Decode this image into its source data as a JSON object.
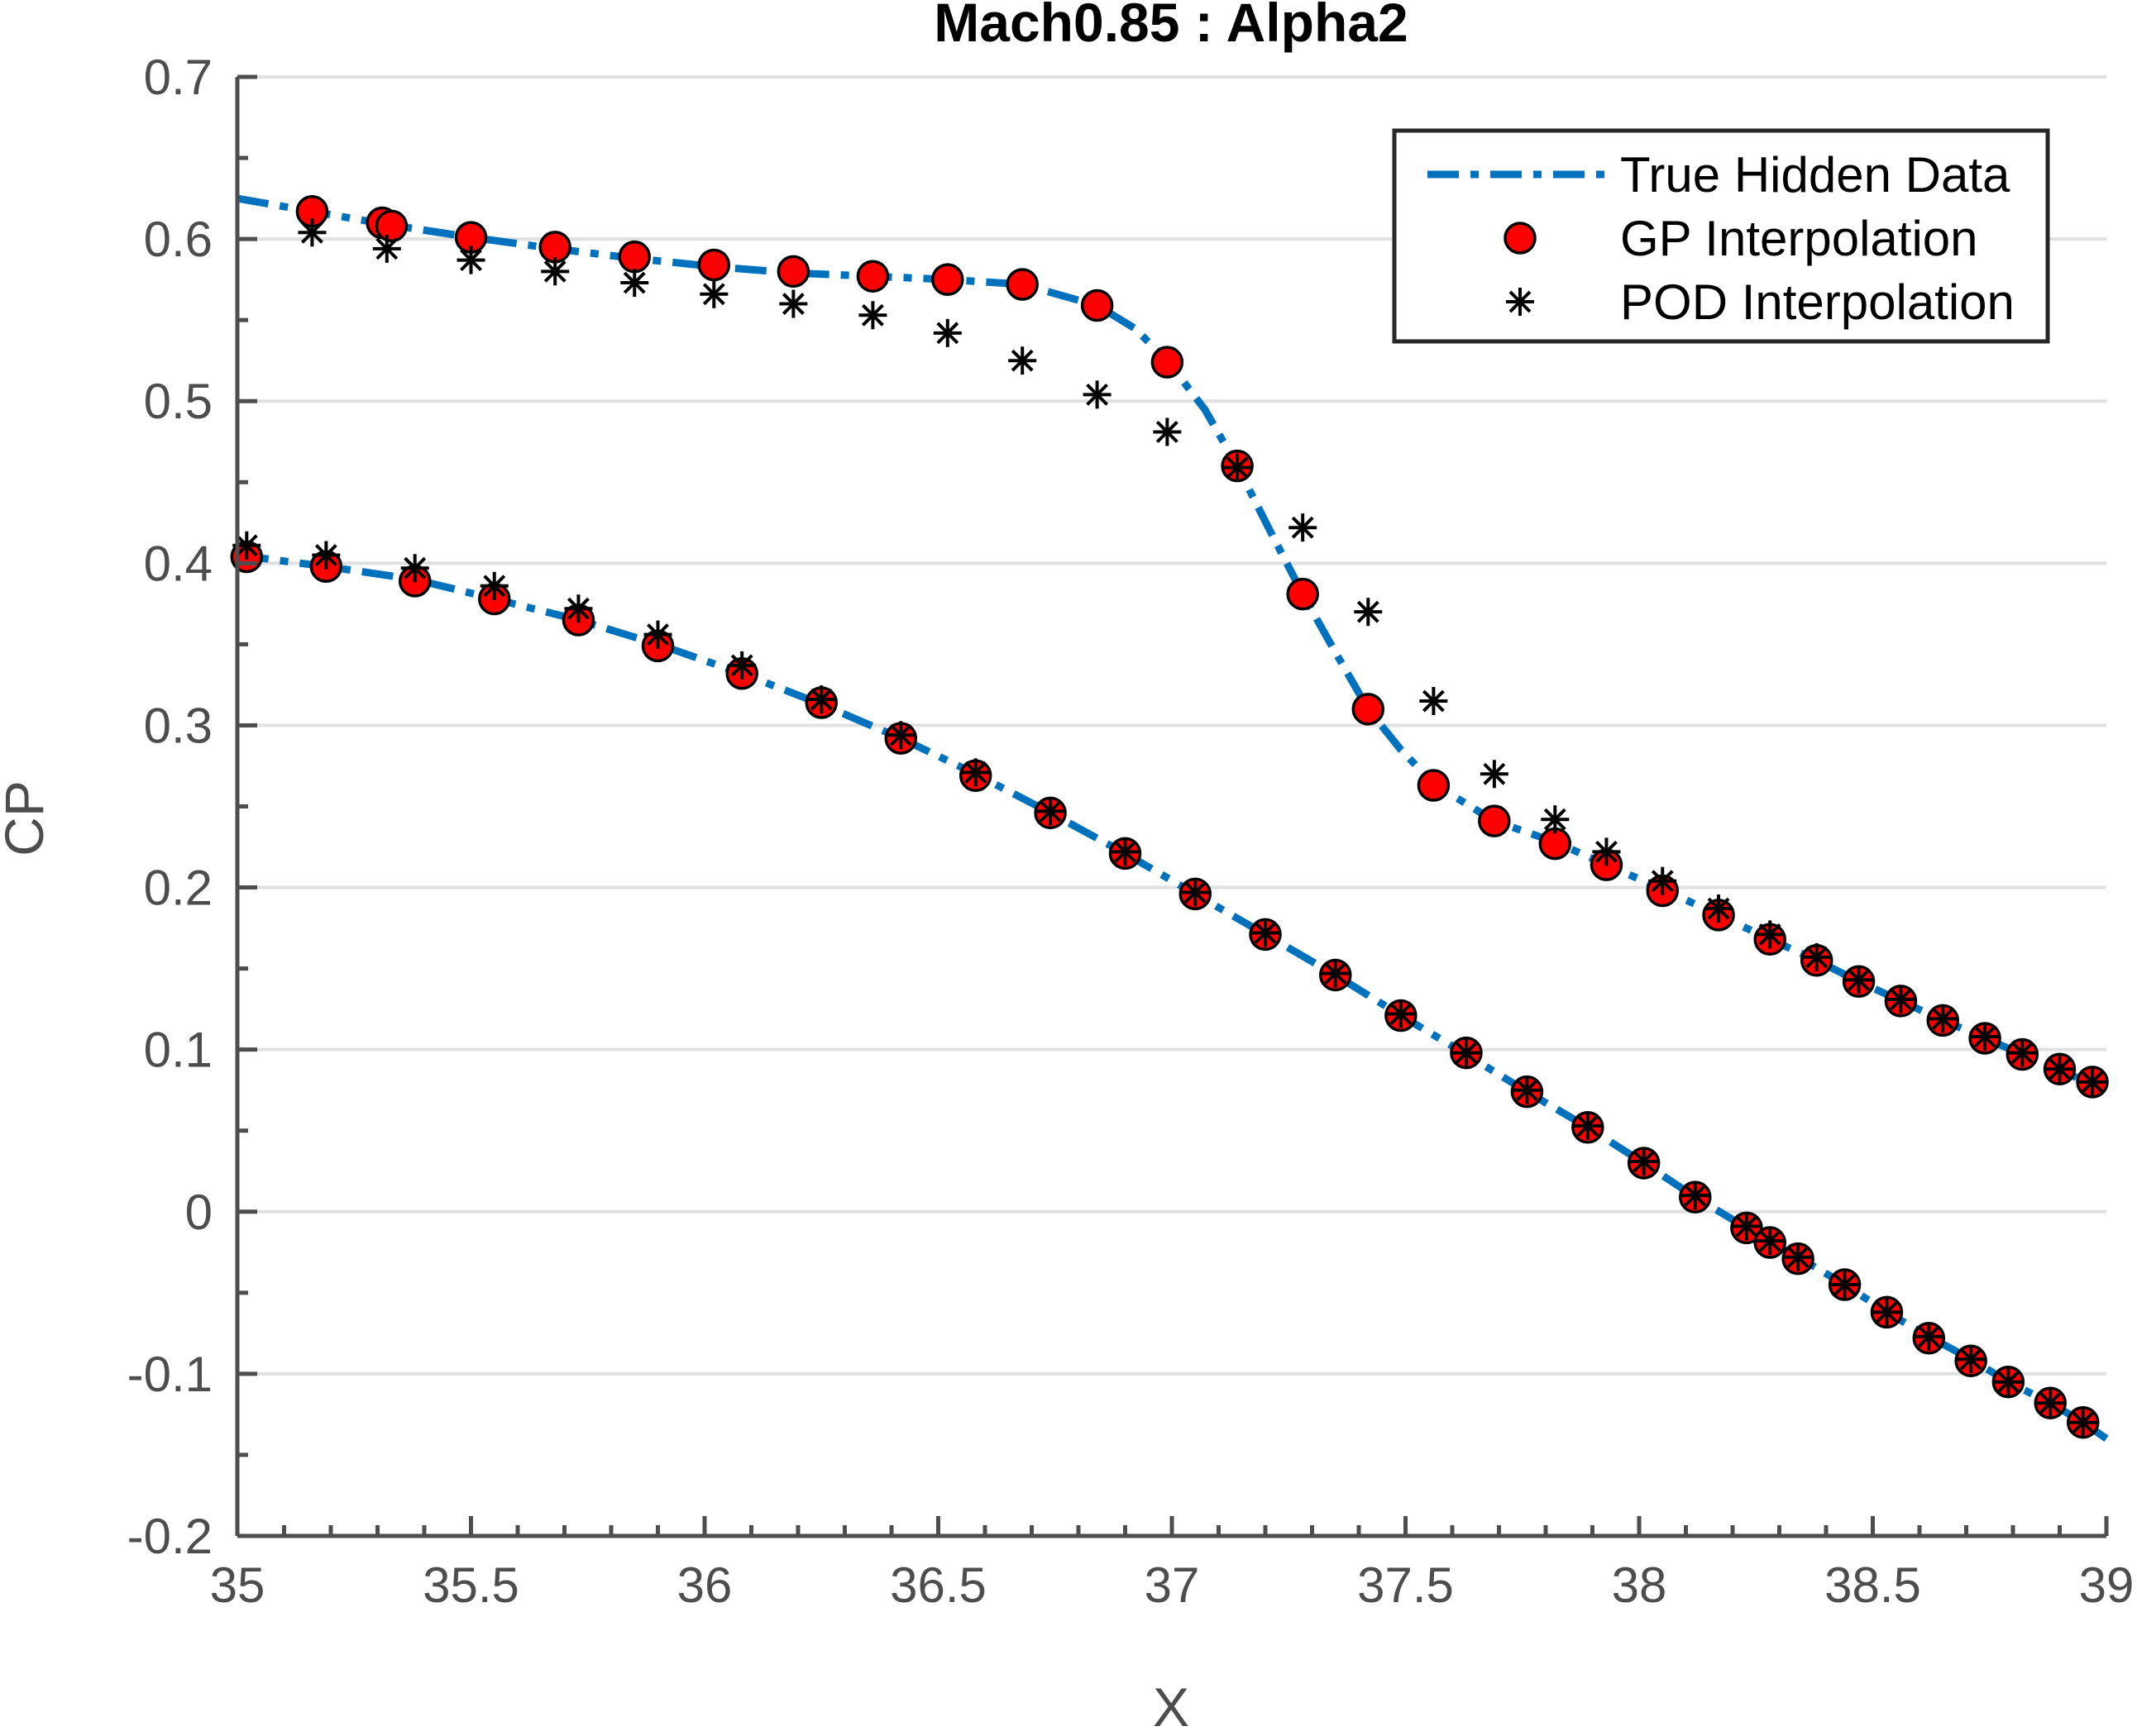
{
  "chart_data": {
    "type": "line",
    "title": "Mach0.85 : Alpha2",
    "xlabel": "X",
    "ylabel": "CP",
    "xlim": [
      35,
      39
    ],
    "ylim": [
      -0.2,
      0.7
    ],
    "xticks": [
      35,
      35.5,
      36,
      36.5,
      37,
      37.5,
      38,
      38.5,
      39
    ],
    "xtick_labels": [
      "35",
      "35.5",
      "36",
      "36.5",
      "37",
      "37.5",
      "38",
      "38.5",
      "39"
    ],
    "yticks": [
      -0.2,
      -0.1,
      0,
      0.1,
      0.2,
      0.3,
      0.4,
      0.5,
      0.6,
      0.7
    ],
    "ytick_labels": [
      "-0.2",
      "-0.1",
      "0",
      "0.1",
      "0.2",
      "0.3",
      "0.4",
      "0.5",
      "0.6",
      "0.7"
    ],
    "grid": "horizontal",
    "legend_position": "top-right",
    "colors": {
      "true_line": "#0072BD",
      "gp_fill": "#FF0000",
      "marker_edge": "#000000",
      "grid": "#e0e0e0",
      "axis": "#4d4d4d"
    },
    "series": [
      {
        "name": "True Hidden Data",
        "style": "dash-dot",
        "segments": [
          {
            "x": [
              35.0,
              35.16,
              35.32,
              35.5,
              35.68,
              35.85,
              36.02,
              36.19,
              36.36,
              36.52,
              36.68,
              36.84,
              36.92,
              36.99,
              37.07,
              37.14,
              37.21,
              37.28,
              37.35,
              37.42,
              37.49,
              37.56,
              37.69,
              37.82,
              37.93,
              38.05,
              38.17,
              38.28,
              38.38,
              38.47,
              38.56,
              38.65,
              38.74,
              38.82,
              38.9,
              38.97
            ],
            "y": [
              0.625,
              0.617,
              0.609,
              0.601,
              0.594,
              0.588,
              0.583,
              0.579,
              0.577,
              0.575,
              0.572,
              0.559,
              0.545,
              0.525,
              0.495,
              0.46,
              0.42,
              0.381,
              0.345,
              0.31,
              0.285,
              0.264,
              0.241,
              0.228,
              0.214,
              0.199,
              0.183,
              0.168,
              0.155,
              0.142,
              0.13,
              0.118,
              0.107,
              0.097,
              0.087,
              0.079
            ]
          },
          {
            "x": [
              35.0,
              35.19,
              35.38,
              35.55,
              35.73,
              35.9,
              36.08,
              36.25,
              36.42,
              36.58,
              36.74,
              36.9,
              37.05,
              37.2,
              37.35,
              37.49,
              37.63,
              37.76,
              37.89,
              38.01,
              38.12,
              38.23,
              38.28,
              38.34,
              38.44,
              38.53,
              38.62,
              38.71,
              38.79,
              38.88,
              38.95,
              39.0
            ],
            "y": [
              0.405,
              0.398,
              0.39,
              0.378,
              0.365,
              0.35,
              0.332,
              0.313,
              0.292,
              0.27,
              0.246,
              0.221,
              0.196,
              0.171,
              0.146,
              0.121,
              0.097,
              0.074,
              0.052,
              0.03,
              0.009,
              -0.01,
              -0.019,
              -0.028,
              -0.045,
              -0.062,
              -0.077,
              -0.091,
              -0.105,
              -0.118,
              -0.13,
              -0.14
            ]
          }
        ]
      },
      {
        "name": "GP Interpolation",
        "style": "marker-circle",
        "x": [
          35.16,
          35.31,
          35.33,
          35.5,
          35.68,
          35.85,
          36.02,
          36.19,
          36.36,
          36.52,
          36.68,
          36.84,
          36.99,
          37.14,
          37.28,
          37.42,
          37.56,
          37.69,
          37.82,
          37.93,
          38.05,
          38.17,
          38.28,
          38.38,
          38.47,
          38.56,
          38.65,
          38.74,
          38.82,
          38.9,
          38.97,
          35.02,
          35.19,
          35.38,
          35.55,
          35.73,
          35.9,
          36.08,
          36.25,
          36.42,
          36.58,
          36.74,
          36.9,
          37.05,
          37.2,
          37.35,
          37.49,
          37.63,
          37.76,
          37.89,
          38.01,
          38.12,
          38.23,
          38.28,
          38.34,
          38.44,
          38.53,
          38.62,
          38.71,
          38.79,
          38.88,
          38.95
        ],
        "y": [
          0.617,
          0.61,
          0.608,
          0.601,
          0.595,
          0.589,
          0.584,
          0.58,
          0.577,
          0.575,
          0.572,
          0.559,
          0.524,
          0.46,
          0.381,
          0.31,
          0.263,
          0.241,
          0.227,
          0.214,
          0.198,
          0.183,
          0.168,
          0.155,
          0.142,
          0.13,
          0.118,
          0.107,
          0.097,
          0.088,
          0.08,
          0.404,
          0.398,
          0.389,
          0.378,
          0.365,
          0.349,
          0.332,
          0.314,
          0.292,
          0.269,
          0.246,
          0.221,
          0.196,
          0.171,
          0.146,
          0.121,
          0.098,
          0.074,
          0.052,
          0.03,
          0.009,
          -0.01,
          -0.019,
          -0.029,
          -0.045,
          -0.062,
          -0.078,
          -0.092,
          -0.105,
          -0.118,
          -0.13
        ]
      },
      {
        "name": "POD Interpolation",
        "style": "marker-asterisk",
        "x": [
          35.16,
          35.32,
          35.5,
          35.68,
          35.85,
          36.02,
          36.19,
          36.36,
          36.52,
          36.68,
          36.84,
          36.99,
          37.14,
          37.28,
          37.42,
          37.56,
          37.69,
          37.82,
          37.93,
          38.05,
          38.17,
          38.28,
          38.38,
          38.47,
          38.56,
          38.65,
          38.74,
          38.82,
          38.9,
          38.97,
          35.02,
          35.19,
          35.38,
          35.55,
          35.73,
          35.9,
          36.08,
          36.25,
          36.42,
          36.58,
          36.74,
          36.9,
          37.05,
          37.2,
          37.35,
          37.49,
          37.63,
          37.76,
          37.89,
          38.01,
          38.12,
          38.23,
          38.28,
          38.34,
          38.44,
          38.53,
          38.62,
          38.71,
          38.79,
          38.88,
          38.95
        ],
        "y": [
          0.604,
          0.594,
          0.587,
          0.58,
          0.573,
          0.566,
          0.56,
          0.553,
          0.542,
          0.525,
          0.504,
          0.481,
          0.459,
          0.422,
          0.37,
          0.315,
          0.27,
          0.242,
          0.222,
          0.204,
          0.187,
          0.171,
          0.157,
          0.143,
          0.131,
          0.119,
          0.108,
          0.098,
          0.088,
          0.08,
          0.411,
          0.405,
          0.397,
          0.386,
          0.372,
          0.356,
          0.337,
          0.316,
          0.294,
          0.271,
          0.247,
          0.222,
          0.197,
          0.172,
          0.147,
          0.122,
          0.098,
          0.075,
          0.053,
          0.031,
          0.01,
          -0.009,
          -0.018,
          -0.028,
          -0.045,
          -0.062,
          -0.077,
          -0.091,
          -0.105,
          -0.118,
          -0.13
        ]
      }
    ]
  }
}
